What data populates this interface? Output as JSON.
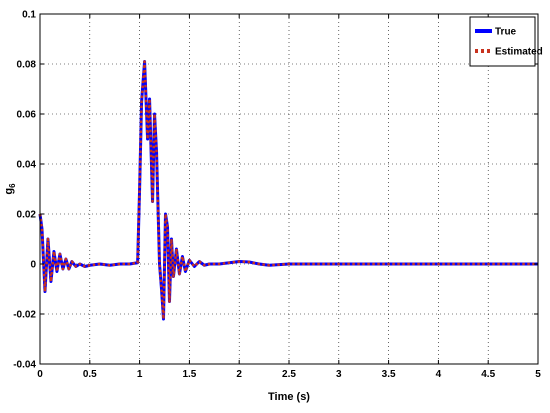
{
  "chart_data": {
    "type": "line",
    "xlabel": "Time (s)",
    "ylabel": "g",
    "ylabel_subscript": "6",
    "xlim": [
      0,
      5
    ],
    "ylim": [
      -0.04,
      0.1
    ],
    "xticks": [
      "0",
      "0.5",
      "1",
      "1.5",
      "2",
      "2.5",
      "3",
      "3.5",
      "4",
      "4.5",
      "5"
    ],
    "yticks": [
      "-0.04",
      "-0.02",
      "0",
      "0.02",
      "0.04",
      "0.06",
      "0.08",
      "0.1"
    ],
    "grid": true,
    "legend_position": "top-right",
    "series": [
      {
        "name": "True",
        "color": "#0000ff",
        "style": "solid",
        "x": [
          0,
          0.02,
          0.05,
          0.08,
          0.11,
          0.14,
          0.17,
          0.2,
          0.23,
          0.26,
          0.29,
          0.32,
          0.36,
          0.4,
          0.45,
          0.5,
          0.6,
          0.7,
          0.8,
          0.9,
          0.98,
          1.0,
          1.02,
          1.05,
          1.08,
          1.1,
          1.13,
          1.15,
          1.17,
          1.2,
          1.22,
          1.24,
          1.26,
          1.28,
          1.3,
          1.32,
          1.34,
          1.37,
          1.4,
          1.43,
          1.46,
          1.5,
          1.55,
          1.6,
          1.65,
          1.7,
          1.8,
          1.9,
          2.0,
          2.1,
          2.2,
          2.3,
          2.5,
          2.7,
          3.0,
          3.5,
          4.0,
          4.5,
          5.0
        ],
        "y": [
          0.02,
          0.014,
          -0.011,
          0.01,
          -0.007,
          0.005,
          -0.003,
          0.004,
          -0.002,
          0.002,
          -0.002,
          0.001,
          -0.001,
          0.0,
          -0.001,
          -0.0005,
          0.0,
          -0.0005,
          0.0,
          0.0,
          0.0005,
          0.03,
          0.065,
          0.081,
          0.05,
          0.066,
          0.025,
          0.06,
          0.045,
          0.0,
          -0.01,
          -0.022,
          0.02,
          0.015,
          -0.015,
          0.01,
          -0.005,
          0.006,
          -0.004,
          0.003,
          -0.003,
          0.0015,
          -0.001,
          0.001,
          -0.0005,
          0.0,
          0.0,
          0.0005,
          0.001,
          0.0008,
          0.0,
          -0.0005,
          0.0,
          0.0,
          0.0,
          0.0,
          0.0,
          0.0,
          0.0
        ]
      },
      {
        "name": "Estimated",
        "color": "#c8321e",
        "style": "dotted",
        "x": [
          0,
          0.02,
          0.05,
          0.08,
          0.11,
          0.14,
          0.17,
          0.2,
          0.23,
          0.26,
          0.29,
          0.32,
          0.36,
          0.4,
          0.45,
          0.5,
          0.6,
          0.7,
          0.8,
          0.9,
          0.98,
          1.0,
          1.02,
          1.05,
          1.08,
          1.1,
          1.13,
          1.15,
          1.17,
          1.2,
          1.22,
          1.24,
          1.26,
          1.28,
          1.3,
          1.32,
          1.34,
          1.37,
          1.4,
          1.43,
          1.46,
          1.5,
          1.55,
          1.6,
          1.65,
          1.7,
          1.8,
          1.9,
          2.0,
          2.1,
          2.2,
          2.3,
          2.5,
          2.7,
          3.0,
          3.5,
          4.0,
          4.5,
          5.0
        ],
        "y": [
          0.02,
          0.014,
          -0.011,
          0.01,
          -0.007,
          0.005,
          -0.003,
          0.004,
          -0.002,
          0.002,
          -0.002,
          0.001,
          -0.001,
          0.0,
          -0.001,
          -0.0005,
          0.0,
          -0.0005,
          0.0,
          0.0,
          0.0005,
          0.03,
          0.065,
          0.081,
          0.05,
          0.066,
          0.025,
          0.06,
          0.045,
          0.0,
          -0.01,
          -0.022,
          0.02,
          0.015,
          -0.015,
          0.01,
          -0.005,
          0.006,
          -0.004,
          0.003,
          -0.003,
          0.0015,
          -0.001,
          0.001,
          -0.0005,
          0.0,
          0.0,
          0.0005,
          0.001,
          0.0008,
          0.0,
          -0.0005,
          0.0,
          0.0,
          0.0,
          0.0,
          0.0,
          0.0,
          0.0
        ]
      }
    ]
  }
}
